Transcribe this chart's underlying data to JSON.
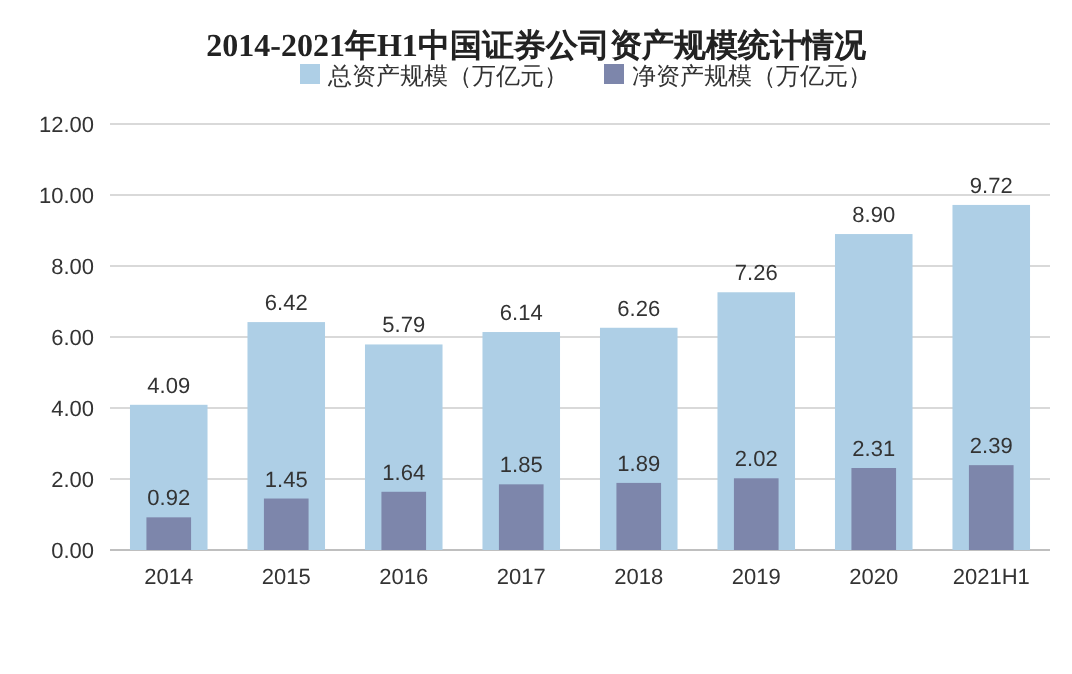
{
  "chart_data": {
    "type": "bar",
    "title": "2014-2021年H1中国证券公司资产规模统计情况",
    "categories": [
      "2014",
      "2015",
      "2016",
      "2017",
      "2018",
      "2019",
      "2020",
      "2021H1"
    ],
    "series": [
      {
        "name": "总资产规模（万亿元）",
        "color": "#aecfe6",
        "values": [
          4.09,
          6.42,
          5.79,
          6.14,
          6.26,
          7.26,
          8.9,
          9.72
        ],
        "value_labels": [
          "4.09",
          "6.42",
          "5.79",
          "6.14",
          "6.26",
          "7.26",
          "8.90",
          "9.72"
        ]
      },
      {
        "name": "净资产规模（万亿元）",
        "color": "#7d86ab",
        "values": [
          0.92,
          1.45,
          1.64,
          1.85,
          1.89,
          2.02,
          2.31,
          2.39
        ],
        "value_labels": [
          "0.92",
          "1.45",
          "1.64",
          "1.85",
          "1.89",
          "2.02",
          "2.31",
          "2.39"
        ]
      }
    ],
    "ylim": [
      0,
      12
    ],
    "yticks": [
      {
        "value": 0,
        "label": "0.00"
      },
      {
        "value": 2,
        "label": "2.00"
      },
      {
        "value": 4,
        "label": "4.00"
      },
      {
        "value": 6,
        "label": "6.00"
      },
      {
        "value": 8,
        "label": "8.00"
      },
      {
        "value": 10,
        "label": "10.00"
      },
      {
        "value": 12,
        "label": "12.00"
      }
    ],
    "grid": "y",
    "legend": "top"
  }
}
